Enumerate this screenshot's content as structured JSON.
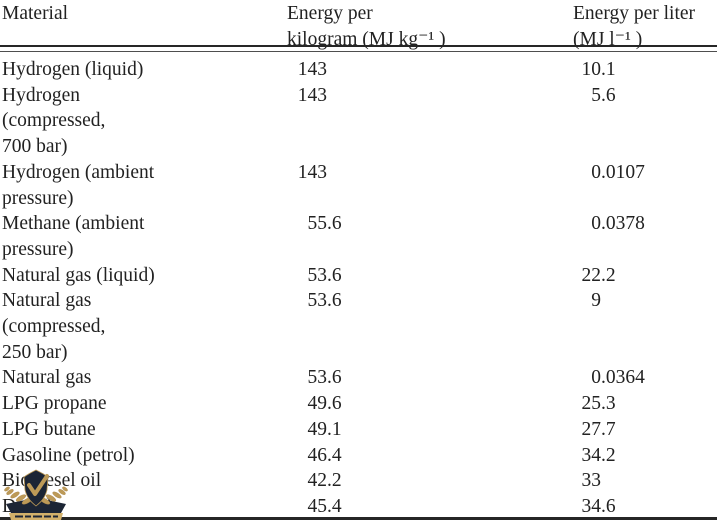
{
  "table": {
    "header": {
      "material": "Material",
      "energy_per_kg": "Energy per\nkilogram (MJ kg⁻¹ )",
      "energy_per_liter": "Energy per liter\n(MJ l⁻¹ )"
    },
    "rows": [
      {
        "material": "Hydrogen (liquid)",
        "per_kg": "143",
        "per_liter": "10.1"
      },
      {
        "material": "Hydrogen\n(compressed,\n700 bar)",
        "per_kg": "143",
        "per_liter": "5.6"
      },
      {
        "material": "Hydrogen (ambient\npressure)",
        "per_kg": "143",
        "per_liter": "0.0107"
      },
      {
        "material": "Methane (ambient\npressure)",
        "per_kg": "55.6",
        "per_liter": "0.0378"
      },
      {
        "material": "Natural gas (liquid)",
        "per_kg": "53.6",
        "per_liter": "22.2"
      },
      {
        "material": "Natural gas\n(compressed,\n250 bar)",
        "per_kg": "53.6",
        "per_liter": "9"
      },
      {
        "material": "Natural gas",
        "per_kg": "53.6",
        "per_liter": "0.0364"
      },
      {
        "material": "LPG propane",
        "per_kg": "49.6",
        "per_liter": "25.3"
      },
      {
        "material": "LPG butane",
        "per_kg": "49.1",
        "per_liter": "27.7"
      },
      {
        "material": "Gasoline (petrol)",
        "per_kg": "46.4",
        "per_liter": "34.2"
      },
      {
        "material": "Biodiesel oil",
        "per_kg": "42.2",
        "per_liter": "33"
      },
      {
        "material": "Diesel",
        "per_kg": "45.4",
        "per_liter": "34.6"
      }
    ]
  },
  "chart_data": {
    "type": "table",
    "title": "",
    "columns": [
      "Material",
      "Energy per kilogram (MJ kg-1)",
      "Energy per liter (MJ l-1)"
    ],
    "rows": [
      [
        "Hydrogen (liquid)",
        143,
        10.1
      ],
      [
        "Hydrogen (compressed, 700 bar)",
        143,
        5.6
      ],
      [
        "Hydrogen (ambient pressure)",
        143,
        0.0107
      ],
      [
        "Methane (ambient pressure)",
        55.6,
        0.0378
      ],
      [
        "Natural gas (liquid)",
        53.6,
        22.2
      ],
      [
        "Natural gas (compressed, 250 bar)",
        53.6,
        9
      ],
      [
        "Natural gas",
        53.6,
        0.0364
      ],
      [
        "LPG propane",
        49.6,
        25.3
      ],
      [
        "LPG butane",
        49.1,
        27.7
      ],
      [
        "Gasoline (petrol)",
        46.4,
        34.2
      ],
      [
        "Biodiesel oil",
        42.2,
        33
      ],
      [
        "Diesel",
        45.4,
        34.6
      ]
    ]
  },
  "watermark": {
    "description": "navy-and-gold-emblem-logo",
    "colors": {
      "navy": "#1c2535",
      "gold": "#bd9a57",
      "gold_light": "#d2b06a"
    }
  },
  "colors": {
    "text": "#222222",
    "rule_dark": "#262626",
    "rule_thin": "#4e4e4e",
    "background": "#ffffff"
  }
}
